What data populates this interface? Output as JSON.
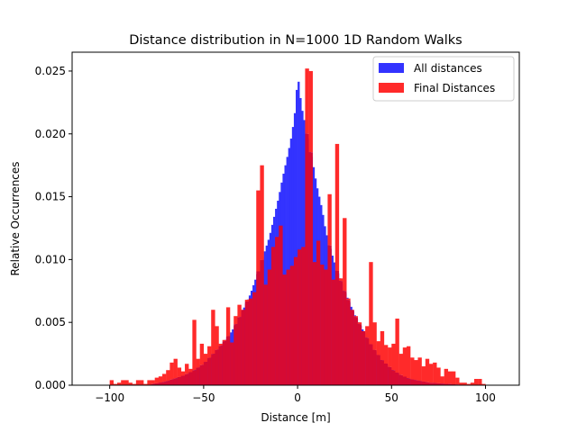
{
  "chart_data": {
    "type": "bar",
    "title": "Distance distribution in N=1000 1D Random Walks",
    "xlabel": "Distance [m]",
    "ylabel": "Relative Occurrences",
    "xlim": [
      -120,
      118
    ],
    "ylim": [
      0,
      0.0265
    ],
    "xticks": [
      "−100",
      "−50",
      "0",
      "50",
      "100"
    ],
    "xtick_values": [
      -100,
      -50,
      0,
      50,
      100
    ],
    "yticks": [
      "0.000",
      "0.005",
      "0.010",
      "0.015",
      "0.020",
      "0.025"
    ],
    "ytick_values": [
      0,
      0.005,
      0.01,
      0.015,
      0.02,
      0.025
    ],
    "grid": false,
    "legend_placement": "top-right",
    "colors": {
      "all_distances": "#3333ff",
      "final_distances": "#ff2a2a",
      "overlap": "#d60a33"
    },
    "series": [
      {
        "name": "All distances",
        "color": "#3333ff",
        "bin_width": 1,
        "envelope": [
          [
            -80,
            0.0
          ],
          [
            -70,
            0.0003
          ],
          [
            -60,
            0.0008
          ],
          [
            -55,
            0.0012
          ],
          [
            -50,
            0.0017
          ],
          [
            -45,
            0.0025
          ],
          [
            -40,
            0.0033
          ],
          [
            -35,
            0.0043
          ],
          [
            -30,
            0.0057
          ],
          [
            -25,
            0.0073
          ],
          [
            -20,
            0.0095
          ],
          [
            -15,
            0.0118
          ],
          [
            -10,
            0.015
          ],
          [
            -8,
            0.0165
          ],
          [
            -5,
            0.0185
          ],
          [
            -3,
            0.02
          ],
          [
            -1,
            0.0222
          ],
          [
            0,
            0.0248
          ],
          [
            1,
            0.0235
          ],
          [
            2,
            0.0222
          ],
          [
            5,
            0.02
          ],
          [
            8,
            0.0178
          ],
          [
            10,
            0.016
          ],
          [
            13,
            0.014
          ],
          [
            15,
            0.0122
          ],
          [
            20,
            0.0095
          ],
          [
            25,
            0.0075
          ],
          [
            30,
            0.0057
          ],
          [
            35,
            0.0043
          ],
          [
            40,
            0.003
          ],
          [
            45,
            0.002
          ],
          [
            50,
            0.0013
          ],
          [
            55,
            0.0008
          ],
          [
            60,
            0.0005
          ],
          [
            70,
            0.0002
          ],
          [
            80,
            0.0001
          ],
          [
            90,
            0.0
          ]
        ]
      },
      {
        "name": "Final Distances",
        "color": "#ff2a2a",
        "bin_width": 2,
        "bins": [
          [
            -100,
            0.0004
          ],
          [
            -98,
            0.0001
          ],
          [
            -96,
            0.0002
          ],
          [
            -94,
            0.0004
          ],
          [
            -92,
            0.0004
          ],
          [
            -90,
            0.0002
          ],
          [
            -88,
            0.0001
          ],
          [
            -86,
            0.0004
          ],
          [
            -84,
            0.0004
          ],
          [
            -82,
            0.0001
          ],
          [
            -80,
            0.0004
          ],
          [
            -78,
            0.0004
          ],
          [
            -76,
            0.0006
          ],
          [
            -74,
            0.0007
          ],
          [
            -72,
            0.0009
          ],
          [
            -70,
            0.0012
          ],
          [
            -68,
            0.0018
          ],
          [
            -66,
            0.0021
          ],
          [
            -64,
            0.0014
          ],
          [
            -62,
            0.0011
          ],
          [
            -60,
            0.0017
          ],
          [
            -58,
            0.0013
          ],
          [
            -56,
            0.0032
          ],
          [
            -54,
            0.0021
          ],
          [
            -52,
            0.0022
          ],
          [
            -50,
            0.0025
          ],
          [
            -48,
            0.0031
          ],
          [
            -46,
            0.003
          ],
          [
            -44,
            0.0047
          ],
          [
            -42,
            0.0033
          ],
          [
            -40,
            0.0036
          ],
          [
            -38,
            0.0058
          ],
          [
            -36,
            0.0034
          ],
          [
            -34,
            0.0055
          ],
          [
            -32,
            0.0064
          ],
          [
            -30,
            0.006
          ],
          [
            -28,
            0.0068
          ],
          [
            -26,
            0.0069
          ],
          [
            -24,
            0.0074
          ],
          [
            -22,
            0.0082
          ],
          [
            -20,
            0.009
          ],
          [
            -18,
            0.008
          ],
          [
            -16,
            0.0092
          ],
          [
            -14,
            0.011
          ],
          [
            -12,
            0.0118
          ],
          [
            -10,
            0.01
          ],
          [
            -8,
            0.0088
          ],
          [
            -6,
            0.0092
          ],
          [
            -4,
            0.0095
          ],
          [
            -2,
            0.0102
          ],
          [
            0,
            0.0108
          ],
          [
            2,
            0.011
          ],
          [
            4,
            0.0252
          ],
          [
            6,
            0.0112
          ],
          [
            8,
            0.0098
          ],
          [
            10,
            0.01
          ],
          [
            12,
            0.0096
          ],
          [
            14,
            0.0092
          ],
          [
            16,
            0.009
          ],
          [
            18,
            0.0084
          ],
          [
            20,
            0.0098
          ],
          [
            22,
            0.0085
          ],
          [
            24,
            0.0082
          ],
          [
            26,
            0.0069
          ],
          [
            28,
            0.006
          ],
          [
            30,
            0.0055
          ],
          [
            32,
            0.005
          ],
          [
            34,
            0.0043
          ],
          [
            36,
            0.0047
          ],
          [
            38,
            0.0078
          ],
          [
            40,
            0.004
          ],
          [
            42,
            0.0035
          ],
          [
            44,
            0.0043
          ],
          [
            46,
            0.0032
          ],
          [
            48,
            0.003
          ],
          [
            50,
            0.0033
          ],
          [
            52,
            0.0045
          ],
          [
            54,
            0.0025
          ],
          [
            56,
            0.0018
          ],
          [
            58,
            0.0031
          ],
          [
            60,
            0.0022
          ],
          [
            62,
            0.002
          ],
          [
            64,
            0.0013
          ],
          [
            66,
            0.0015
          ],
          [
            68,
            0.0025
          ],
          [
            70,
            0.0017
          ],
          [
            72,
            0.001
          ],
          [
            74,
            0.0014
          ],
          [
            76,
            0.0007
          ],
          [
            78,
            0.0013
          ],
          [
            80,
            0.0004
          ],
          [
            82,
            0.0011
          ],
          [
            84,
            0.0006
          ],
          [
            86,
            0.0002
          ],
          [
            88,
            0.0002
          ],
          [
            90,
            0.0001
          ],
          [
            92,
            0.0002
          ],
          [
            94,
            0.0005
          ],
          [
            96,
            0.0005
          ],
          [
            98,
            0.0001
          ]
        ],
        "spikes": [
          [
            -56,
            0.0052
          ],
          [
            -52,
            0.0033
          ],
          [
            -46,
            0.006
          ],
          [
            -38,
            0.0062
          ],
          [
            -22,
            0.0155
          ],
          [
            -20,
            0.0175
          ],
          [
            -10,
            0.0127
          ],
          [
            6,
            0.025
          ],
          [
            10,
            0.0115
          ],
          [
            16,
            0.0152
          ],
          [
            20,
            0.0192
          ],
          [
            24,
            0.0133
          ],
          [
            38,
            0.0098
          ],
          [
            40,
            0.005
          ],
          [
            52,
            0.0053
          ],
          [
            56,
            0.003
          ],
          [
            64,
            0.0022
          ],
          [
            68,
            0.0021
          ],
          [
            72,
            0.0018
          ],
          [
            80,
            0.0011
          ]
        ]
      }
    ]
  }
}
